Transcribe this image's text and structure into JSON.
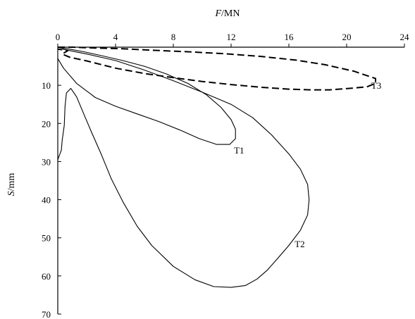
{
  "chart_data": {
    "type": "line",
    "xaxis": {
      "label_italic": "F",
      "label_rest": "/MN",
      "position": "top",
      "range": [
        0,
        24
      ],
      "ticks": [
        0,
        4,
        8,
        12,
        16,
        20,
        24
      ]
    },
    "yaxis": {
      "label_italic": "S",
      "label_rest": "/mm",
      "inverted": true,
      "range": [
        0,
        70
      ],
      "ticks": [
        10,
        20,
        30,
        40,
        50,
        60,
        70
      ]
    },
    "grid": false,
    "series": [
      {
        "name": "T1",
        "style": "solid",
        "label_point": [
          12.2,
          27.0
        ],
        "points": [
          [
            0.0,
            0.0
          ],
          [
            0.2,
            0.2
          ],
          [
            0.8,
            0.5
          ],
          [
            1.8,
            1.2
          ],
          [
            3.0,
            2.2
          ],
          [
            4.5,
            3.5
          ],
          [
            6.0,
            5.0
          ],
          [
            7.5,
            7.0
          ],
          [
            9.0,
            9.5
          ],
          [
            10.3,
            12.5
          ],
          [
            11.3,
            15.8
          ],
          [
            12.0,
            19.0
          ],
          [
            12.3,
            21.5
          ],
          [
            12.3,
            24.0
          ],
          [
            11.9,
            25.5
          ],
          [
            11.0,
            25.5
          ],
          [
            9.8,
            24.0
          ],
          [
            8.5,
            21.8
          ],
          [
            7.0,
            19.5
          ],
          [
            5.5,
            17.5
          ],
          [
            4.0,
            15.5
          ],
          [
            2.6,
            13.2
          ],
          [
            1.3,
            9.5
          ],
          [
            0.4,
            5.5
          ],
          [
            0.0,
            3.0
          ]
        ]
      },
      {
        "name": "T2",
        "style": "solid",
        "label_point": [
          16.4,
          51.5
        ],
        "points": [
          [
            0.3,
            0.5
          ],
          [
            2.0,
            1.8
          ],
          [
            4.0,
            3.5
          ],
          [
            6.0,
            6.0
          ],
          [
            8.0,
            8.8
          ],
          [
            10.0,
            11.8
          ],
          [
            12.0,
            15.0
          ],
          [
            13.5,
            18.5
          ],
          [
            14.8,
            23.0
          ],
          [
            16.0,
            28.0
          ],
          [
            16.8,
            32.0
          ],
          [
            17.3,
            36.0
          ],
          [
            17.4,
            40.0
          ],
          [
            17.3,
            44.0
          ],
          [
            16.8,
            48.0
          ],
          [
            16.0,
            52.0
          ],
          [
            15.2,
            55.5
          ],
          [
            14.5,
            58.5
          ],
          [
            13.8,
            60.8
          ],
          [
            13.0,
            62.5
          ],
          [
            12.0,
            63.0
          ],
          [
            10.8,
            62.8
          ],
          [
            9.5,
            61.0
          ],
          [
            8.0,
            57.5
          ],
          [
            6.5,
            52.0
          ],
          [
            5.5,
            47.0
          ],
          [
            4.5,
            40.5
          ],
          [
            3.7,
            34.5
          ],
          [
            3.0,
            28.0
          ],
          [
            2.3,
            22.0
          ],
          [
            1.8,
            17.5
          ],
          [
            1.3,
            13.0
          ],
          [
            0.9,
            10.8
          ],
          [
            0.6,
            12.0
          ],
          [
            0.5,
            15.5
          ],
          [
            0.45,
            20.5
          ],
          [
            0.3,
            24.5
          ],
          [
            0.25,
            27.0
          ],
          [
            0.0,
            29.5
          ]
        ]
      },
      {
        "name": "T3",
        "style": "dashed",
        "label_point": [
          21.7,
          10.0
        ],
        "points": [
          [
            0.0,
            0.0
          ],
          [
            1.0,
            0.0
          ],
          [
            2.5,
            0.2
          ],
          [
            4.5,
            0.4
          ],
          [
            6.5,
            0.8
          ],
          [
            9.0,
            1.2
          ],
          [
            11.5,
            1.7
          ],
          [
            14.0,
            2.4
          ],
          [
            16.5,
            3.4
          ],
          [
            18.5,
            4.6
          ],
          [
            20.5,
            6.3
          ],
          [
            21.5,
            7.6
          ],
          [
            22.0,
            8.2
          ],
          [
            22.0,
            9.5
          ],
          [
            21.4,
            10.4
          ],
          [
            20.2,
            10.8
          ],
          [
            18.8,
            11.2
          ],
          [
            17.5,
            11.2
          ],
          [
            16.0,
            11.0
          ],
          [
            14.0,
            10.5
          ],
          [
            12.0,
            9.8
          ],
          [
            10.0,
            9.0
          ],
          [
            8.0,
            8.0
          ],
          [
            6.0,
            6.9
          ],
          [
            4.0,
            5.5
          ],
          [
            2.0,
            3.6
          ],
          [
            0.8,
            2.6
          ],
          [
            0.3,
            1.8
          ],
          [
            0.7,
            0.9
          ],
          [
            0.0,
            0.5
          ]
        ]
      }
    ]
  }
}
